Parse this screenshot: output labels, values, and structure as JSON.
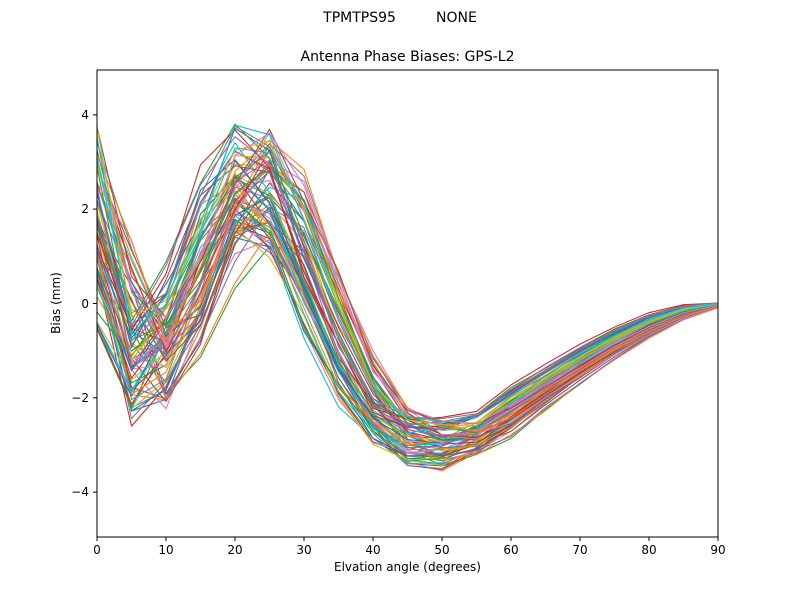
{
  "chart_data": {
    "type": "line",
    "suptitle": "TPMTPS95         NONE",
    "title": "Antenna Phase Biases: GPS-L2",
    "xlabel": "Elvation angle (degrees)",
    "ylabel": "Bias (mm)",
    "xlim": [
      0,
      90
    ],
    "ylim": [
      -4.95,
      4.95
    ],
    "x_ticks": [
      0,
      10,
      20,
      30,
      40,
      50,
      60,
      70,
      80,
      90
    ],
    "y_ticks": [
      -4,
      -2,
      0,
      2,
      4
    ],
    "grid": false,
    "legend": "none",
    "x": [
      0,
      5,
      10,
      15,
      20,
      25,
      30,
      35,
      40,
      45,
      50,
      55,
      60,
      65,
      70,
      75,
      80,
      85,
      90
    ],
    "mean": [
      2.2,
      -1.4,
      -1.1,
      0.7,
      2.5,
      2.6,
      1.1,
      -0.8,
      -2.2,
      -2.9,
      -3.0,
      -2.85,
      -2.3,
      -1.8,
      -1.3,
      -0.85,
      -0.45,
      -0.15,
      0.0
    ],
    "envelope_min": [
      -1.0,
      -3.1,
      -2.9,
      -1.3,
      0.6,
      0.5,
      -0.4,
      -2.0,
      -2.9,
      -3.6,
      -3.65,
      -3.3,
      -2.8,
      -2.2,
      -1.6,
      -1.1,
      -0.6,
      -0.25,
      -0.05
    ],
    "envelope_max": [
      4.0,
      0.5,
      0.6,
      2.4,
      4.1,
      4.2,
      2.6,
      0.5,
      -1.5,
      -2.0,
      -2.2,
      -2.4,
      -1.8,
      -1.4,
      -1.0,
      -0.6,
      -0.3,
      -0.1,
      0.0
    ],
    "offset_halfwidth": [
      1.45,
      1.0,
      1.0,
      1.0,
      1.1,
      1.1,
      0.9,
      0.7,
      0.5,
      0.5,
      0.5,
      0.33,
      0.3,
      0.24,
      0.18,
      0.13,
      0.08,
      0.04,
      0.01
    ],
    "jitter": [
      0.3,
      0.32,
      0.4,
      0.4,
      0.36,
      0.36,
      0.32,
      0.24,
      0.12,
      0.1,
      0.08,
      0.06,
      0.04,
      0.03,
      0.02,
      0.01,
      0.01,
      0.0,
      0.0
    ],
    "x_shift_max": 3.2,
    "n_lines": 80,
    "seed": 11,
    "colors": [
      "#1f77b4",
      "#ff7f0e",
      "#2ca02c",
      "#d62728",
      "#9467bd",
      "#8c564b",
      "#e377c2",
      "#7f7f7f",
      "#bcbd22",
      "#17becf"
    ],
    "axis_color": "#000000",
    "background_color": "#ffffff"
  }
}
